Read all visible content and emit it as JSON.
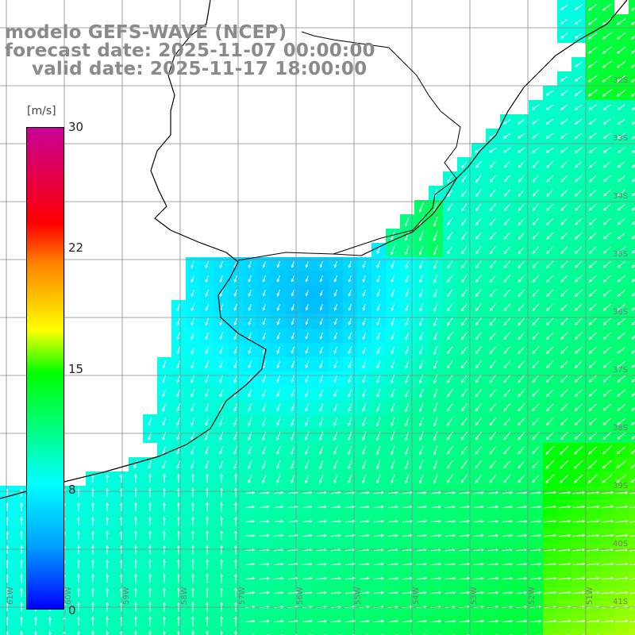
{
  "title": {
    "line1": "modelo GEFS-WAVE (NCEP)",
    "line2": "forecast date: 2025-11-07 00:00:00",
    "line3": "valid date: 2025-11-17 18:00:00"
  },
  "colorbar": {
    "unit": "[m/s]",
    "ticks": [
      "30",
      "22",
      "15",
      "8",
      "0"
    ],
    "tick_values": [
      30,
      22,
      15,
      8,
      0
    ],
    "range": [
      0,
      30
    ],
    "colors": [
      "#0000ff",
      "#00a0ff",
      "#00ffff",
      "#00ff00",
      "#ffff00",
      "#ff8000",
      "#ff0000",
      "#c80096"
    ]
  },
  "map": {
    "lat_labels": [
      "32S",
      "33S",
      "34S",
      "35S",
      "36S",
      "37S",
      "38S",
      "39S",
      "40S",
      "41S"
    ],
    "lon_labels": [
      "61W",
      "60W",
      "59W",
      "58W",
      "57W",
      "56W",
      "55W",
      "54W",
      "53W",
      "52W",
      "51W"
    ],
    "land_color": "#ffffff",
    "grid_color": "#888888",
    "arrow_color": "#ffffff"
  }
}
